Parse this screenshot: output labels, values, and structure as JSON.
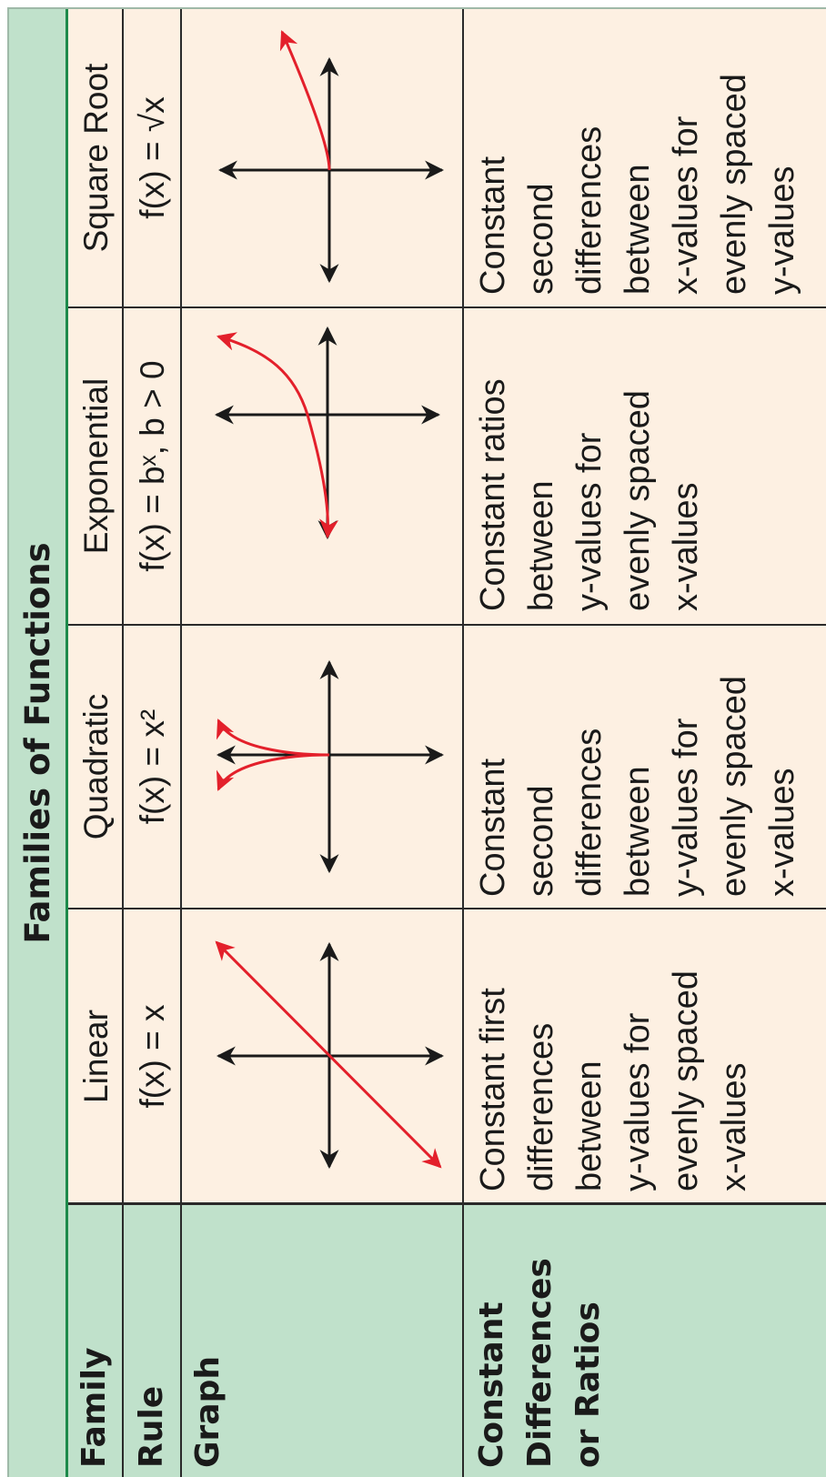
{
  "title": "Families of Functions",
  "row_labels": {
    "family": "Family",
    "rule": "Rule",
    "graph": "Graph",
    "constant_line1": "Constant",
    "constant_line2": "Differences",
    "constant_line3": "or Ratios"
  },
  "columns": [
    {
      "family": "Linear",
      "rule": "f(x) = x",
      "graph_icon": "linear-graph-icon",
      "differences": [
        "Constant first",
        "differences",
        "between",
        "y-values for",
        "evenly spaced",
        "x-values"
      ]
    },
    {
      "family": "Quadratic",
      "rule": "f(x) = x²",
      "graph_icon": "quadratic-graph-icon",
      "differences": [
        "Constant",
        "second",
        "differences",
        "between",
        "y-values for",
        "evenly spaced",
        "x-values"
      ]
    },
    {
      "family": "Exponential",
      "rule": "f(x) = bˣ, b > 0",
      "graph_icon": "exponential-graph-icon",
      "differences": [
        "Constant ratios",
        "between",
        "y-values for",
        "evenly spaced",
        "x-values"
      ]
    },
    {
      "family": "Square Root",
      "rule": "f(x) = √x",
      "graph_icon": "square-root-graph-icon",
      "differences": [
        "Constant",
        "second",
        "differences",
        "between",
        "x-values for",
        "evenly spaced",
        "y-values"
      ]
    }
  ],
  "colors": {
    "header_green": "#c0e1cb",
    "cell_cream": "#fdf0e2",
    "accent_rule_green": "#1d8a4b",
    "curve_red": "#e3202b",
    "axis_black": "#1a1a1a"
  }
}
